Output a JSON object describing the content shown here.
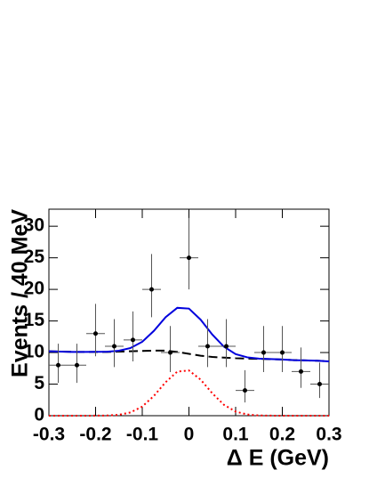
{
  "chart_data": {
    "type": "scatter",
    "x_label": "Δ E (GeV)",
    "y_label": "Events / 40 MeV",
    "xlim": [
      -0.3,
      0.3
    ],
    "ylim": [
      0,
      32.7
    ],
    "xticks": [
      -0.3,
      -0.2,
      -0.1,
      0,
      0.1,
      0.2,
      0.3
    ],
    "yticks": [
      0,
      5,
      10,
      15,
      20,
      25,
      30
    ],
    "points": {
      "color": "#000000",
      "x": [
        -0.28,
        -0.24,
        -0.2,
        -0.16,
        -0.12,
        -0.08,
        -0.04,
        0,
        0.04,
        0.08,
        0.12,
        0.16,
        0.2,
        0.24,
        0.28
      ],
      "values": [
        8,
        8,
        13,
        11,
        12,
        20,
        10,
        25,
        11,
        11,
        4,
        10,
        10,
        7,
        5
      ],
      "xerr": [
        0.02,
        0.02,
        0.02,
        0.02,
        0.02,
        0.02,
        0.02,
        0.02,
        0.02,
        0.02,
        0.02,
        0.02,
        0.02,
        0.02,
        0.02
      ],
      "yerr_low": [
        2.8,
        2.8,
        3.6,
        3.3,
        3.4,
        4.4,
        3.1,
        5.0,
        3.3,
        3.3,
        1.9,
        3.1,
        3.1,
        2.6,
        2.2
      ],
      "yerr_high": [
        3.4,
        3.4,
        4.7,
        4.3,
        4.5,
        5.6,
        4.2,
        6.3,
        4.3,
        4.3,
        3.2,
        4.2,
        4.2,
        3.8,
        3.4
      ]
    },
    "curve_x": [
      -0.3,
      -0.275,
      -0.25,
      -0.225,
      -0.2,
      -0.175,
      -0.15,
      -0.125,
      -0.1,
      -0.075,
      -0.05,
      -0.025,
      0,
      0.025,
      0.05,
      0.075,
      0.1,
      0.125,
      0.15,
      0.175,
      0.2,
      0.225,
      0.25,
      0.275,
      0.3
    ],
    "curves": [
      {
        "color": "#ff0000",
        "style": "dotted",
        "values": [
          0,
          0,
          0,
          0,
          0.01,
          0.03,
          0.14,
          0.52,
          1.45,
          3.14,
          5.3,
          6.98,
          7.16,
          5.71,
          3.55,
          1.72,
          0.65,
          0.19,
          0.04,
          0.01,
          0,
          0,
          0,
          0,
          0
        ]
      },
      {
        "color": "#000000",
        "style": "dashed",
        "values": [
          10.2,
          10.15,
          10.1,
          10.1,
          10.1,
          10.1,
          10.15,
          10.2,
          10.25,
          10.3,
          10.3,
          10.1,
          9.8,
          9.5,
          9.3,
          9.2,
          9.1,
          9.05,
          9.0,
          8.95,
          8.9,
          8.8,
          8.75,
          8.7,
          8.6
        ]
      },
      {
        "color": "#0000dd",
        "style": "solid",
        "values": [
          10.2,
          10.15,
          10.1,
          10.1,
          10.11,
          10.13,
          10.29,
          10.72,
          11.7,
          13.44,
          15.6,
          17.08,
          16.96,
          15.21,
          12.85,
          10.92,
          9.75,
          9.24,
          9.04,
          8.96,
          8.9,
          8.8,
          8.75,
          8.7,
          8.6
        ]
      }
    ]
  }
}
